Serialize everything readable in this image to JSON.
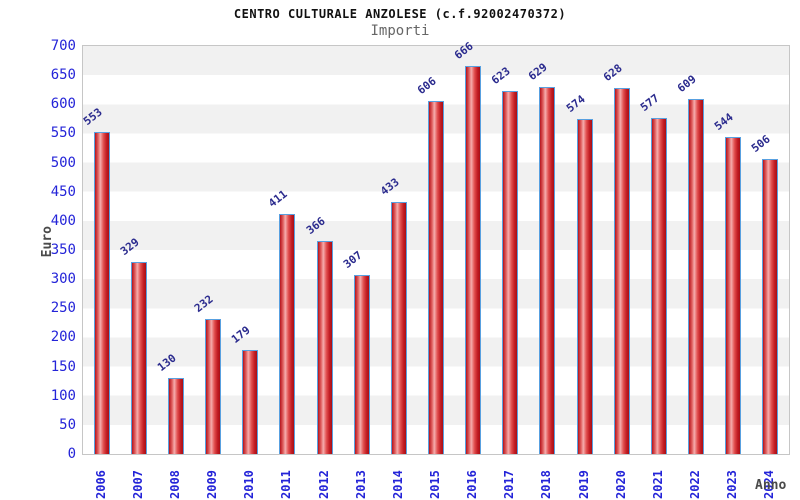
{
  "chart_data": {
    "type": "bar",
    "title": "CENTRO CULTURALE ANZOLESE (c.f.92002470372)",
    "subtitle": "Importi",
    "xlabel": "Anno",
    "ylabel": "Euro",
    "categories": [
      "2006",
      "2007",
      "2008",
      "2009",
      "2010",
      "2011",
      "2012",
      "2013",
      "2014",
      "2015",
      "2016",
      "2017",
      "2018",
      "2019",
      "2020",
      "2021",
      "2022",
      "2023",
      "2024"
    ],
    "values": [
      553,
      329,
      130,
      232,
      179,
      411,
      366,
      307,
      433,
      606,
      666,
      623,
      629,
      574,
      628,
      577,
      609,
      544,
      506
    ],
    "ylim": [
      0,
      700
    ],
    "ytick_step": 50,
    "grid": "horizontal-bands",
    "legend": "none",
    "colors": {
      "bar_border": "#58a0e0",
      "bar_fill_dark": "#b5131c",
      "bar_fill_light": "#f5adad",
      "tick_label": "#2424d8",
      "value_label": "#2b2b8e",
      "axis_title": "#4a4a4a",
      "band_gray": "#f1f1f1",
      "band_white": "#ffffff",
      "plot_border": "#c6c6c6"
    }
  }
}
